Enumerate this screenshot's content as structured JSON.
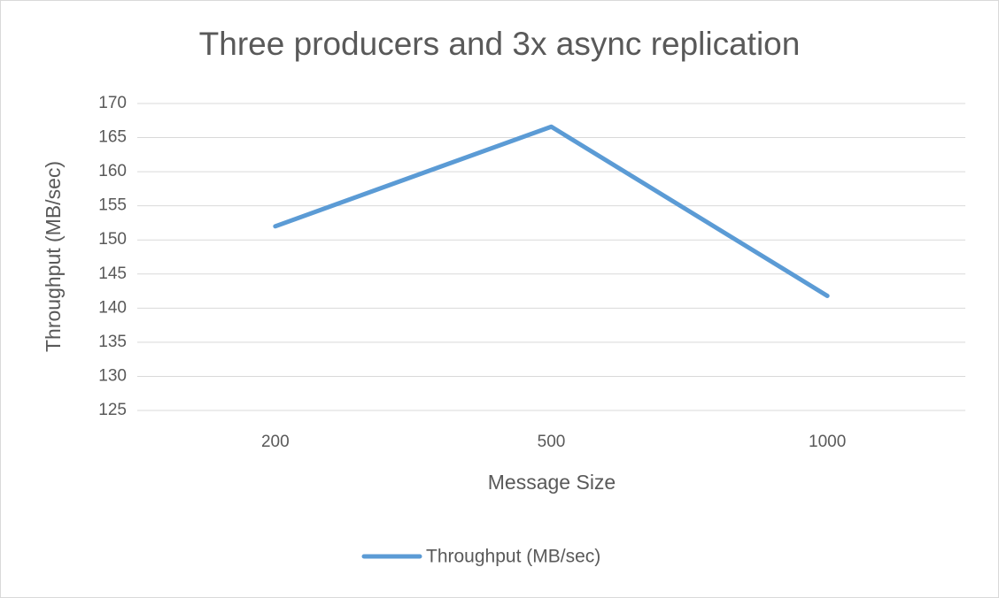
{
  "chart_data": {
    "type": "line",
    "title": "Three producers and 3x async replication",
    "x_label": "Message Size",
    "y_label": "Throughput (MB/sec)",
    "categories": [
      "200",
      "500",
      "1000"
    ],
    "series": [
      {
        "name": "Throughput (MB/sec)",
        "color": "#5b9bd5",
        "values": [
          152,
          166.6,
          141.8
        ]
      }
    ],
    "ylim": [
      125,
      170
    ],
    "yticks": [
      125,
      130,
      135,
      140,
      145,
      150,
      155,
      160,
      165,
      170
    ],
    "grid": true,
    "legend": "bottom"
  }
}
